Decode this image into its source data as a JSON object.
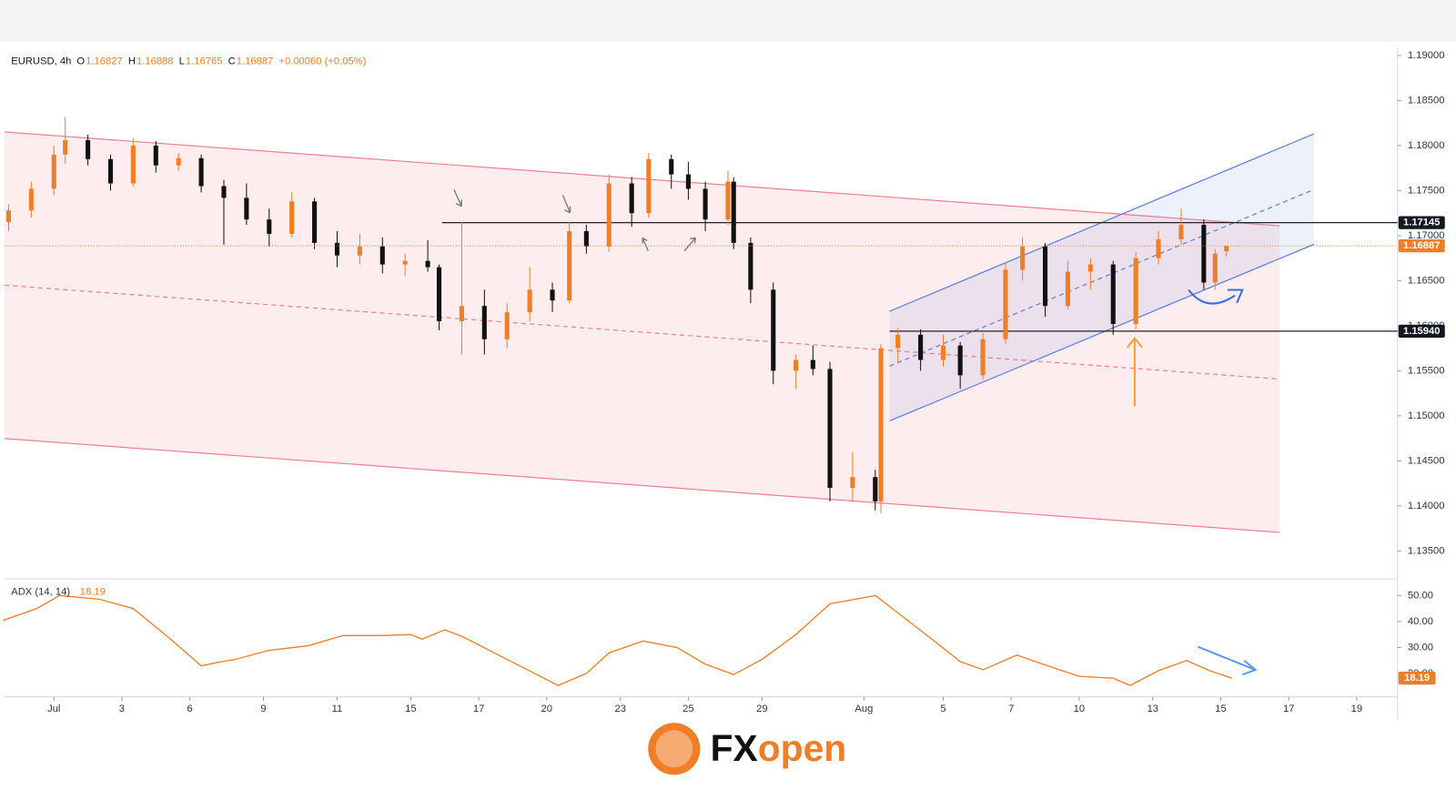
{
  "chart_data": {
    "type": "candlestick",
    "header": {
      "symbol": "EURUSD, 4h",
      "o_label": "O",
      "h_label": "H",
      "l_label": "L",
      "c_label": "C",
      "change": "+0.00060 (+0.05%)"
    },
    "up_color": "#f07e26",
    "down_color": "#111111",
    "candles": {
      "x": [
        -8,
        -4,
        0,
        2,
        6,
        10,
        14,
        18,
        22,
        26,
        30,
        34,
        38,
        42,
        46,
        50,
        54,
        58,
        62,
        66,
        68,
        72,
        76,
        80,
        84,
        88,
        91,
        94,
        98,
        102,
        105,
        109,
        112,
        115,
        119,
        120,
        123,
        127,
        131,
        134,
        137,
        141,
        145,
        146,
        149,
        153,
        157,
        160,
        164,
        168,
        171,
        175,
        179,
        183,
        187,
        191,
        195,
        199,
        203,
        205,
        207
      ],
      "open": [
        1.1715,
        1.1728,
        1.1752,
        1.179,
        1.1806,
        1.1785,
        1.1758,
        1.18,
        1.1778,
        1.1786,
        1.1755,
        1.1742,
        1.1718,
        1.1702,
        1.1738,
        1.1692,
        1.1678,
        1.1688,
        1.1668,
        1.1672,
        1.1665,
        1.1605,
        1.1622,
        1.1585,
        1.1615,
        1.164,
        1.1628,
        1.1705,
        1.1688,
        1.1758,
        1.1725,
        1.1785,
        1.1768,
        1.1752,
        1.1718,
        1.176,
        1.1692,
        1.164,
        1.155,
        1.1562,
        1.1552,
        1.142,
        1.1432,
        1.1405,
        1.1575,
        1.159,
        1.1562,
        1.1578,
        1.1545,
        1.1585,
        1.1662,
        1.1688,
        1.1622,
        1.166,
        1.1668,
        1.1602,
        1.1675,
        1.1696,
        1.1712,
        1.1648,
        1.16827
      ],
      "high": [
        1.1735,
        1.176,
        1.18,
        1.1832,
        1.1812,
        1.179,
        1.1808,
        1.1805,
        1.1792,
        1.179,
        1.1762,
        1.1758,
        1.173,
        1.1748,
        1.1742,
        1.1705,
        1.1702,
        1.1698,
        1.168,
        1.1695,
        1.1668,
        1.1715,
        1.164,
        1.1625,
        1.1665,
        1.1648,
        1.1715,
        1.1712,
        1.1768,
        1.1765,
        1.1792,
        1.179,
        1.1782,
        1.176,
        1.1772,
        1.1765,
        1.1698,
        1.1648,
        1.1568,
        1.1578,
        1.156,
        1.146,
        1.144,
        1.158,
        1.1598,
        1.1596,
        1.159,
        1.1582,
        1.1592,
        1.167,
        1.1698,
        1.1692,
        1.1672,
        1.1675,
        1.1672,
        1.1682,
        1.1705,
        1.173,
        1.1718,
        1.1685,
        1.16888
      ],
      "low": [
        1.1705,
        1.172,
        1.1745,
        1.178,
        1.1778,
        1.175,
        1.1755,
        1.177,
        1.1772,
        1.1748,
        1.169,
        1.1712,
        1.1688,
        1.1698,
        1.1685,
        1.1665,
        1.1668,
        1.1658,
        1.1655,
        1.166,
        1.1595,
        1.1568,
        1.1568,
        1.1575,
        1.1605,
        1.1615,
        1.1625,
        1.168,
        1.1682,
        1.171,
        1.172,
        1.1752,
        1.174,
        1.1705,
        1.1712,
        1.1685,
        1.1625,
        1.1535,
        1.153,
        1.1545,
        1.1405,
        1.1405,
        1.1395,
        1.1392,
        1.156,
        1.155,
        1.1555,
        1.153,
        1.154,
        1.158,
        1.165,
        1.161,
        1.1618,
        1.164,
        1.159,
        1.1596,
        1.1668,
        1.169,
        1.164,
        1.164,
        1.16765
      ],
      "close": [
        1.1728,
        1.1752,
        1.179,
        1.1806,
        1.1785,
        1.1758,
        1.18,
        1.1778,
        1.1786,
        1.1755,
        1.1742,
        1.1718,
        1.1702,
        1.1738,
        1.1692,
        1.1678,
        1.1688,
        1.1668,
        1.1672,
        1.1665,
        1.1605,
        1.1622,
        1.1585,
        1.1615,
        1.164,
        1.1628,
        1.1705,
        1.1688,
        1.1758,
        1.1725,
        1.1785,
        1.1768,
        1.1752,
        1.1718,
        1.176,
        1.1692,
        1.164,
        1.155,
        1.1562,
        1.1552,
        1.142,
        1.1432,
        1.1405,
        1.1575,
        1.159,
        1.1562,
        1.1578,
        1.1545,
        1.1585,
        1.1662,
        1.1688,
        1.1622,
        1.166,
        1.1668,
        1.1602,
        1.1675,
        1.1696,
        1.1712,
        1.1648,
        1.168,
        1.16887
      ]
    },
    "xlim": [
      -8.7,
      237.2
    ],
    "xticks": [
      {
        "value": 0,
        "label": "Jul"
      },
      {
        "value": 12,
        "label": "3"
      },
      {
        "value": 24,
        "label": "6"
      },
      {
        "value": 37,
        "label": "9"
      },
      {
        "value": 50,
        "label": "11"
      },
      {
        "value": 63,
        "label": "15"
      },
      {
        "value": 75,
        "label": "17"
      },
      {
        "value": 87,
        "label": "20"
      },
      {
        "value": 100,
        "label": "23"
      },
      {
        "value": 112,
        "label": "25"
      },
      {
        "value": 125,
        "label": "29"
      },
      {
        "value": 143,
        "label": "Aug"
      },
      {
        "value": 157,
        "label": "5"
      },
      {
        "value": 169,
        "label": "7"
      },
      {
        "value": 181,
        "label": "10"
      },
      {
        "value": 194,
        "label": "13"
      },
      {
        "value": 206,
        "label": "15"
      },
      {
        "value": 218,
        "label": "17"
      },
      {
        "value": 230,
        "label": "19"
      }
    ],
    "ylim": [
      1.132,
      1.1908
    ],
    "yticks": [
      {
        "value": 1.135,
        "label": "1.13500"
      },
      {
        "value": 1.14,
        "label": "1.14000"
      },
      {
        "value": 1.145,
        "label": "1.14500"
      },
      {
        "value": 1.15,
        "label": "1.15000"
      },
      {
        "value": 1.155,
        "label": "1.15500"
      },
      {
        "value": 1.16,
        "label": "1.16000"
      },
      {
        "value": 1.165,
        "label": "1.16500"
      },
      {
        "value": 1.17,
        "label": "1.17000"
      },
      {
        "value": 1.175,
        "label": "1.17500"
      },
      {
        "value": 1.18,
        "label": "1.18000"
      },
      {
        "value": 1.185,
        "label": "1.18500"
      },
      {
        "value": 1.19,
        "label": "1.19000"
      }
    ],
    "levels": [
      {
        "value": 1.17145,
        "label": "1.17145"
      },
      {
        "value": 1.1594,
        "label": "1.15940"
      }
    ],
    "adx": {
      "label": "ADX (14, 14)",
      "color": "#f07e26",
      "x": [
        -9,
        -3,
        1,
        8,
        14,
        21,
        26,
        29,
        32,
        38,
        45,
        51,
        58,
        63,
        65,
        69,
        72,
        81,
        89,
        94,
        98,
        104,
        110,
        115,
        120,
        125,
        131,
        137,
        145,
        148,
        155,
        160,
        164,
        170,
        176,
        181,
        187,
        190,
        195,
        200,
        204,
        208
      ],
      "values": [
        40.4,
        45,
        50,
        48.6,
        45,
        32.5,
        22.9,
        24.3,
        25.4,
        28.9,
        30.7,
        34.6,
        34.6,
        35,
        33.2,
        36.8,
        34.3,
        24.3,
        15.4,
        20,
        27.9,
        32.5,
        30,
        23.6,
        19.6,
        25.4,
        35,
        46.8,
        50,
        45,
        33.2,
        24.6,
        21.4,
        27.1,
        22.5,
        18.9,
        18.2,
        15.4,
        21.1,
        25,
        21.1,
        18.19
      ],
      "ylim": [
        11,
        55.7
      ],
      "yticks": [
        {
          "value": 20,
          "label": "20.00"
        },
        {
          "value": 30,
          "label": "30.00"
        },
        {
          "value": 40,
          "label": "40.00"
        },
        {
          "value": 50,
          "label": "50.00"
        }
      ]
    },
    "logo": [
      "FX",
      "open"
    ]
  }
}
